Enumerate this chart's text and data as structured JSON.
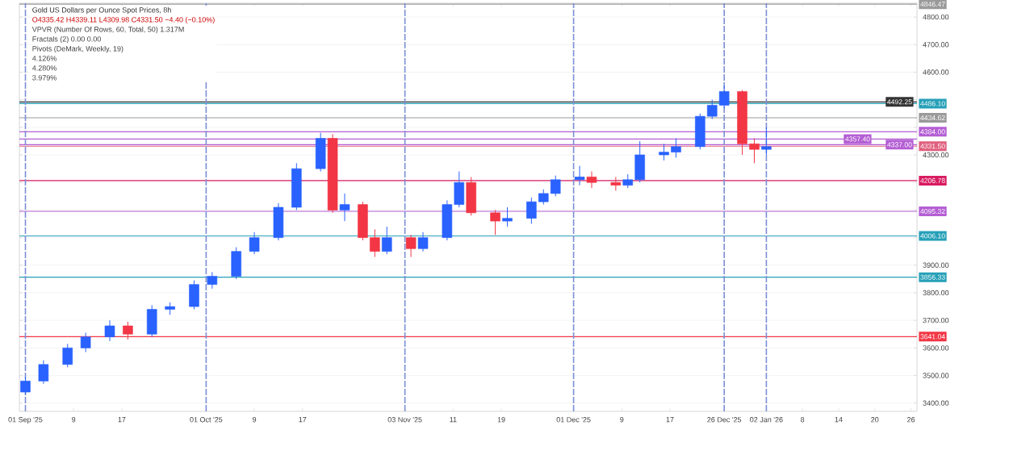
{
  "chart_data": {
    "type": "candlestick",
    "title": "Gold US Dollars per Ounce Spot Prices, 8h",
    "subtitle": "O4335.42 H4339.11 L4309.98 C4331.50 −4.40 (−0.10%)",
    "x": [
      "2025-09-01",
      "2025-09-04",
      "2025-09-08",
      "2025-09-11",
      "2025-09-15",
      "2025-09-18",
      "2025-09-22",
      "2025-09-25",
      "2025-09-29",
      "2025-10-02",
      "2025-10-06",
      "2025-10-09",
      "2025-10-13",
      "2025-10-16",
      "2025-10-20",
      "2025-10-22",
      "2025-10-24",
      "2025-10-27",
      "2025-10-29",
      "2025-10-31",
      "2025-11-04",
      "2025-11-06",
      "2025-11-10",
      "2025-11-12",
      "2025-11-14",
      "2025-11-18",
      "2025-11-20",
      "2025-11-24",
      "2025-11-26",
      "2025-11-28",
      "2025-12-02",
      "2025-12-04",
      "2025-12-08",
      "2025-12-10",
      "2025-12-12",
      "2025-12-16",
      "2025-12-18",
      "2025-12-22",
      "2025-12-24",
      "2025-12-26",
      "2025-12-29",
      "2025-12-31",
      "2026-01-02"
    ],
    "ohlc": [
      [
        3440,
        3495,
        3430,
        3480
      ],
      [
        3480,
        3555,
        3470,
        3540
      ],
      [
        3540,
        3615,
        3530,
        3600
      ],
      [
        3600,
        3655,
        3585,
        3640
      ],
      [
        3640,
        3700,
        3625,
        3680
      ],
      [
        3680,
        3695,
        3630,
        3650
      ],
      [
        3650,
        3755,
        3640,
        3740
      ],
      [
        3740,
        3765,
        3720,
        3750
      ],
      [
        3750,
        3845,
        3740,
        3830
      ],
      [
        3830,
        3875,
        3815,
        3860
      ],
      [
        3860,
        3965,
        3850,
        3950
      ],
      [
        3950,
        4020,
        3940,
        4000
      ],
      [
        4000,
        4125,
        3990,
        4110
      ],
      [
        4110,
        4270,
        4100,
        4250
      ],
      [
        4250,
        4380,
        4240,
        4360
      ],
      [
        4360,
        4375,
        4090,
        4100
      ],
      [
        4100,
        4160,
        4060,
        4120
      ],
      [
        4120,
        4130,
        3990,
        4000
      ],
      [
        4000,
        4030,
        3930,
        3950
      ],
      [
        3950,
        4040,
        3940,
        4000
      ],
      [
        4000,
        4010,
        3930,
        3960
      ],
      [
        3960,
        4020,
        3950,
        4000
      ],
      [
        4000,
        4135,
        3990,
        4120
      ],
      [
        4120,
        4240,
        4110,
        4200
      ],
      [
        4200,
        4220,
        4080,
        4090
      ],
      [
        4090,
        4100,
        4010,
        4060
      ],
      [
        4060,
        4110,
        4040,
        4070
      ],
      [
        4070,
        4145,
        4050,
        4130
      ],
      [
        4130,
        4175,
        4120,
        4160
      ],
      [
        4160,
        4225,
        4150,
        4210
      ],
      [
        4210,
        4260,
        4190,
        4220
      ],
      [
        4220,
        4240,
        4180,
        4200
      ],
      [
        4200,
        4220,
        4170,
        4190
      ],
      [
        4190,
        4230,
        4180,
        4210
      ],
      [
        4210,
        4350,
        4200,
        4300
      ],
      [
        4300,
        4340,
        4280,
        4310
      ],
      [
        4310,
        4360,
        4290,
        4330
      ],
      [
        4330,
        4450,
        4320,
        4440
      ],
      [
        4440,
        4500,
        4430,
        4480
      ],
      [
        4480,
        4550,
        4470,
        4530
      ],
      [
        4530,
        4535,
        4300,
        4340
      ],
      [
        4340,
        4360,
        4270,
        4320
      ],
      [
        4320,
        4400,
        4300,
        4330
      ]
    ],
    "colors": [
      "#2962ff",
      "#2962ff",
      "#2962ff",
      "#2962ff",
      "#2962ff",
      "#f23645",
      "#2962ff",
      "#2962ff",
      "#2962ff",
      "#2962ff",
      "#2962ff",
      "#2962ff",
      "#2962ff",
      "#2962ff",
      "#2962ff",
      "#f23645",
      "#2962ff",
      "#f23645",
      "#f23645",
      "#2962ff",
      "#f23645",
      "#2962ff",
      "#2962ff",
      "#2962ff",
      "#f23645",
      "#f23645",
      "#2962ff",
      "#2962ff",
      "#2962ff",
      "#2962ff",
      "#2962ff",
      "#f23645",
      "#f23645",
      "#2962ff",
      "#2962ff",
      "#2962ff",
      "#2962ff",
      "#2962ff",
      "#2962ff",
      "#2962ff",
      "#f23645",
      "#f23645",
      "#2962ff"
    ],
    "xlim": [
      "2025-08-31",
      "2026-01-27"
    ],
    "xticks": [
      {
        "value": "2025-09-01",
        "label": "01 Sep '25"
      },
      {
        "value": "2025-09-09",
        "label": "9"
      },
      {
        "value": "2025-09-17",
        "label": "17"
      },
      {
        "value": "2025-10-01",
        "label": "01 Oct '25"
      },
      {
        "value": "2025-10-09",
        "label": "9"
      },
      {
        "value": "2025-10-17",
        "label": "17"
      },
      {
        "value": "2025-11-03",
        "label": "03 Nov '25"
      },
      {
        "value": "2025-11-11",
        "label": "11"
      },
      {
        "value": "2025-11-19",
        "label": "19"
      },
      {
        "value": "2025-12-01",
        "label": "01 Dec '25"
      },
      {
        "value": "2025-12-09",
        "label": "9"
      },
      {
        "value": "2025-12-17",
        "label": "17"
      },
      {
        "value": "2025-12-26",
        "label": "26 Dec '25"
      },
      {
        "value": "2026-01-02",
        "label": "02 Jan '26"
      },
      {
        "value": "2026-01-08",
        "label": "8"
      },
      {
        "value": "2026-01-14",
        "label": "14"
      },
      {
        "value": "2026-01-20",
        "label": "20"
      },
      {
        "value": "2026-01-26",
        "label": "26"
      }
    ],
    "ylim": [
      3370,
      4850
    ],
    "yticks": [
      {
        "value": 3400,
        "label": "3400.00"
      },
      {
        "value": 3500,
        "label": "3500.00"
      },
      {
        "value": 3600,
        "label": "3600.00"
      },
      {
        "value": 3700,
        "label": "3700.00"
      },
      {
        "value": 3800,
        "label": "3800.00"
      },
      {
        "value": 3900,
        "label": "3900.00"
      },
      {
        "value": 4000,
        "label": null
      },
      {
        "value": 4100,
        "label": null
      },
      {
        "value": 4200,
        "label": null
      },
      {
        "value": 4300,
        "label": "4300.00"
      },
      {
        "value": 4400,
        "label": null
      },
      {
        "value": 4500,
        "label": null
      },
      {
        "value": 4600,
        "label": "4600.00"
      },
      {
        "value": 4700,
        "label": "4700.00"
      },
      {
        "value": 4800,
        "label": "4800.00"
      }
    ],
    "grid": "y",
    "ref_lines": [
      {
        "axis": "y",
        "value": 4486.1,
        "label": "4486.10",
        "color": "#26a0b8"
      },
      {
        "axis": "y",
        "value": 4384.0,
        "label": "4384.00",
        "color": "#b45ed4"
      },
      {
        "axis": "y",
        "value": 4357.4,
        "label": "4357.40",
        "color": "#b45ed4"
      },
      {
        "axis": "y",
        "value": 4337.0,
        "label": "4337.00",
        "color": "#b45ed4"
      },
      {
        "axis": "y",
        "value": 4206.78,
        "label": "4206.78",
        "color": "#d81b60"
      },
      {
        "axis": "y",
        "value": 4006.1,
        "label": "4006.10",
        "color": "#26a0b8"
      },
      {
        "axis": "y",
        "value": 3856.33,
        "label": "3856.33",
        "color": "#26a0b8"
      },
      {
        "axis": "y",
        "value": 3641.04,
        "label": "3641.04",
        "color": "#f23645"
      },
      {
        "axis": "y",
        "value": 4846.47,
        "label": "4846.47",
        "color": "#9a9a9a"
      },
      {
        "axis": "y",
        "value": 4492.25,
        "label": "4492.25",
        "color": "#333333"
      },
      {
        "axis": "y",
        "value": 4434.62,
        "label": "4434.62",
        "color": "#9a9a9a"
      },
      {
        "axis": "y",
        "value": 4331.5,
        "label": "4331.50",
        "color": "#e0607e"
      },
      {
        "axis": "y",
        "value": 4095.32,
        "label": "4095.32",
        "color": "#b45ed4"
      },
      {
        "axis": "x",
        "value": "2025-09-01",
        "color": "#7b8fd4",
        "line_style": "dashed"
      },
      {
        "axis": "x",
        "value": "2025-10-01",
        "color": "#7b8fd4",
        "line_style": "dashed"
      },
      {
        "axis": "x",
        "value": "2025-11-03",
        "color": "#7b8fd4",
        "line_style": "dashed"
      },
      {
        "axis": "x",
        "value": "2025-12-01",
        "color": "#7b8fd4",
        "line_style": "dashed"
      },
      {
        "axis": "x",
        "value": "2025-12-26",
        "color": "#7b8fd4",
        "line_style": "dashed"
      },
      {
        "axis": "x",
        "value": "2026-01-02",
        "color": "#7b8fd4",
        "line_style": "dashed"
      }
    ],
    "annotations": [
      "VPVR (Number Of Rows, 60, Total, 50) 1.317M",
      "Fractals (2) 0.00 0.00",
      "Pivots (DeMark, Weekly, 19)",
      "4.126%",
      "4.280%",
      "3.979%"
    ]
  }
}
